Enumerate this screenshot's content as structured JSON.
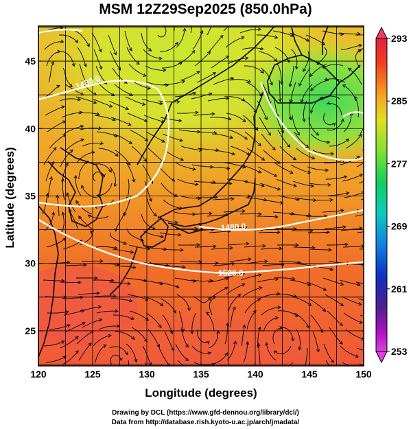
{
  "title": "MSM 12Z29Sep2025 (850.0hPa)",
  "xaxis": {
    "label": "Longitude (degrees)",
    "ticks": [
      "120",
      "125",
      "130",
      "135",
      "140",
      "145",
      "150"
    ]
  },
  "yaxis": {
    "label": "Latitude  (degrees)",
    "ticks": [
      "25",
      "30",
      "35",
      "40",
      "45"
    ]
  },
  "colorbar": {
    "ticks": [
      "293",
      "285",
      "277",
      "269",
      "261",
      "253"
    ],
    "colors": [
      "#e8205a",
      "#f04020",
      "#f87020",
      "#f8a020",
      "#f0d020",
      "#c8e820",
      "#70e030",
      "#10d060",
      "#10c8b0",
      "#1080e0",
      "#1040c8",
      "#2020a0",
      "#6010a0",
      "#c010c0",
      "#e040e0"
    ]
  },
  "contours": [
    {
      "label": "1480.0"
    },
    {
      "label": "1480.0"
    },
    {
      "label": "1520.0"
    }
  ],
  "credits": [
    "Drawing by DCL (https://www.gfd-dennou.org/library/dcl/)",
    "Data from http://database.rish.kyoto-u.ac.jp/arch/jmadata/"
  ]
}
